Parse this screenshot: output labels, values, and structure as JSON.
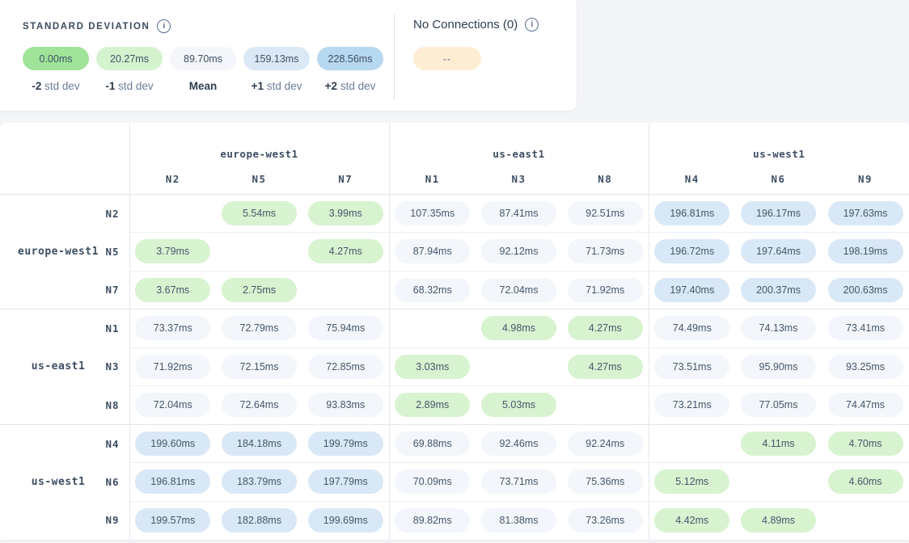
{
  "icons": {
    "info": "i"
  },
  "legend": {
    "std_dev": {
      "title": "STANDARD DEVIATION",
      "items": [
        {
          "value": "0.00ms",
          "bold": "-2",
          "rest": "std dev",
          "color": "#a0e49a"
        },
        {
          "value": "20.27ms",
          "bold": "-1",
          "rest": "std dev",
          "color": "#d4f2ce"
        },
        {
          "value": "89.70ms",
          "bold": "Mean",
          "rest": "",
          "color": "#f4f6fb"
        },
        {
          "value": "159.13ms",
          "bold": "+1",
          "rest": "std dev",
          "color": "#dbe8f5"
        },
        {
          "value": "228.56ms",
          "bold": "+2",
          "rest": "std dev",
          "color": "#b7d8f1"
        }
      ]
    },
    "no_connections": {
      "title": "No Connections (0)",
      "pill_text": "--",
      "pill_color": "#fdeed3"
    }
  },
  "matrix": {
    "tones": {
      "green": "#d8f3d0",
      "neutral": "#f3f6fa",
      "blue": "#d9e8f6"
    },
    "col_groups": [
      {
        "region": "europe-west1",
        "nodes": [
          "N2",
          "N5",
          "N7"
        ]
      },
      {
        "region": "us-east1",
        "nodes": [
          "N1",
          "N3",
          "N8"
        ]
      },
      {
        "region": "us-west1",
        "nodes": [
          "N4",
          "N6",
          "N9"
        ]
      }
    ],
    "row_groups": [
      {
        "region": "europe-west1",
        "rows": [
          {
            "node": "N2",
            "cells": [
              null,
              {
                "text": "5.54ms",
                "tone": "green"
              },
              {
                "text": "3.99ms",
                "tone": "green"
              },
              {
                "text": "107.35ms",
                "tone": "neutral"
              },
              {
                "text": "87.41ms",
                "tone": "neutral"
              },
              {
                "text": "92.51ms",
                "tone": "neutral"
              },
              {
                "text": "196.81ms",
                "tone": "blue"
              },
              {
                "text": "196.17ms",
                "tone": "blue"
              },
              {
                "text": "197.63ms",
                "tone": "blue"
              }
            ]
          },
          {
            "node": "N5",
            "cells": [
              {
                "text": "3.79ms",
                "tone": "green"
              },
              null,
              {
                "text": "4.27ms",
                "tone": "green"
              },
              {
                "text": "87.94ms",
                "tone": "neutral"
              },
              {
                "text": "92.12ms",
                "tone": "neutral"
              },
              {
                "text": "71.73ms",
                "tone": "neutral"
              },
              {
                "text": "196.72ms",
                "tone": "blue"
              },
              {
                "text": "197.64ms",
                "tone": "blue"
              },
              {
                "text": "198.19ms",
                "tone": "blue"
              }
            ]
          },
          {
            "node": "N7",
            "cells": [
              {
                "text": "3.67ms",
                "tone": "green"
              },
              {
                "text": "2.75ms",
                "tone": "green"
              },
              null,
              {
                "text": "68.32ms",
                "tone": "neutral"
              },
              {
                "text": "72.04ms",
                "tone": "neutral"
              },
              {
                "text": "71.92ms",
                "tone": "neutral"
              },
              {
                "text": "197.40ms",
                "tone": "blue"
              },
              {
                "text": "200.37ms",
                "tone": "blue"
              },
              {
                "text": "200.63ms",
                "tone": "blue"
              }
            ]
          }
        ]
      },
      {
        "region": "us-east1",
        "rows": [
          {
            "node": "N1",
            "cells": [
              {
                "text": "73.37ms",
                "tone": "neutral"
              },
              {
                "text": "72.79ms",
                "tone": "neutral"
              },
              {
                "text": "75.94ms",
                "tone": "neutral"
              },
              null,
              {
                "text": "4.98ms",
                "tone": "green"
              },
              {
                "text": "4.27ms",
                "tone": "green"
              },
              {
                "text": "74.49ms",
                "tone": "neutral"
              },
              {
                "text": "74.13ms",
                "tone": "neutral"
              },
              {
                "text": "73.41ms",
                "tone": "neutral"
              }
            ]
          },
          {
            "node": "N3",
            "cells": [
              {
                "text": "71.92ms",
                "tone": "neutral"
              },
              {
                "text": "72.15ms",
                "tone": "neutral"
              },
              {
                "text": "72.85ms",
                "tone": "neutral"
              },
              {
                "text": "3.03ms",
                "tone": "green"
              },
              null,
              {
                "text": "4.27ms",
                "tone": "green"
              },
              {
                "text": "73.51ms",
                "tone": "neutral"
              },
              {
                "text": "95.90ms",
                "tone": "neutral"
              },
              {
                "text": "93.25ms",
                "tone": "neutral"
              }
            ]
          },
          {
            "node": "N8",
            "cells": [
              {
                "text": "72.04ms",
                "tone": "neutral"
              },
              {
                "text": "72.64ms",
                "tone": "neutral"
              },
              {
                "text": "93.83ms",
                "tone": "neutral"
              },
              {
                "text": "2.89ms",
                "tone": "green"
              },
              {
                "text": "5.03ms",
                "tone": "green"
              },
              null,
              {
                "text": "73.21ms",
                "tone": "neutral"
              },
              {
                "text": "77.05ms",
                "tone": "neutral"
              },
              {
                "text": "74.47ms",
                "tone": "neutral"
              }
            ]
          }
        ]
      },
      {
        "region": "us-west1",
        "rows": [
          {
            "node": "N4",
            "cells": [
              {
                "text": "199.60ms",
                "tone": "blue"
              },
              {
                "text": "184.18ms",
                "tone": "blue"
              },
              {
                "text": "199.79ms",
                "tone": "blue"
              },
              {
                "text": "69.88ms",
                "tone": "neutral"
              },
              {
                "text": "92.46ms",
                "tone": "neutral"
              },
              {
                "text": "92.24ms",
                "tone": "neutral"
              },
              null,
              {
                "text": "4.11ms",
                "tone": "green"
              },
              {
                "text": "4.70ms",
                "tone": "green"
              }
            ]
          },
          {
            "node": "N6",
            "cells": [
              {
                "text": "196.81ms",
                "tone": "blue"
              },
              {
                "text": "183.79ms",
                "tone": "blue"
              },
              {
                "text": "197.79ms",
                "tone": "blue"
              },
              {
                "text": "70.09ms",
                "tone": "neutral"
              },
              {
                "text": "73.71ms",
                "tone": "neutral"
              },
              {
                "text": "75.36ms",
                "tone": "neutral"
              },
              {
                "text": "5.12ms",
                "tone": "green"
              },
              null,
              {
                "text": "4.60ms",
                "tone": "green"
              }
            ]
          },
          {
            "node": "N9",
            "cells": [
              {
                "text": "199.57ms",
                "tone": "blue"
              },
              {
                "text": "182.88ms",
                "tone": "blue"
              },
              {
                "text": "199.69ms",
                "tone": "blue"
              },
              {
                "text": "89.82ms",
                "tone": "neutral"
              },
              {
                "text": "81.38ms",
                "tone": "neutral"
              },
              {
                "text": "73.26ms",
                "tone": "neutral"
              },
              {
                "text": "4.42ms",
                "tone": "green"
              },
              {
                "text": "4.89ms",
                "tone": "green"
              },
              null
            ]
          }
        ]
      }
    ]
  }
}
